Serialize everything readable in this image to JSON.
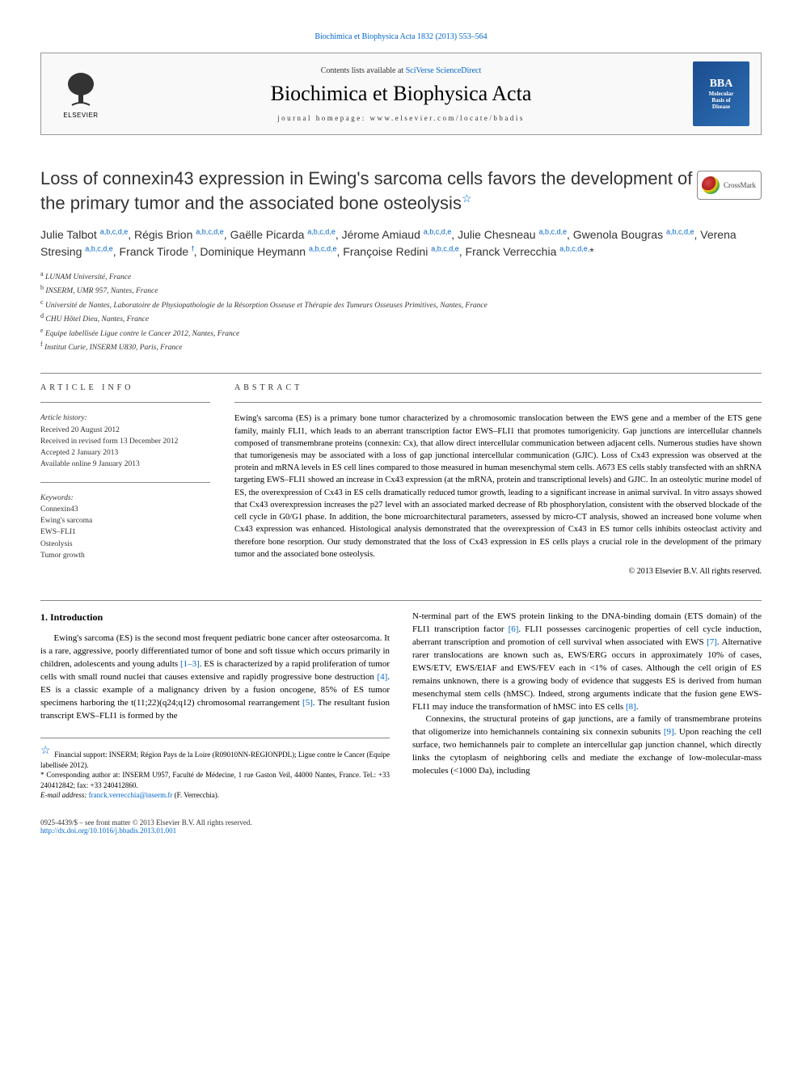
{
  "topbar": "Biochimica et Biophysica Acta 1832 (2013) 553–564",
  "header": {
    "contents_prefix": "Contents lists available at ",
    "contents_link": "SciVerse ScienceDirect",
    "journal": "Biochimica et Biophysica Acta",
    "homepage_label": "journal homepage: ",
    "homepage_url": "www.elsevier.com/locate/bbadis",
    "elsevier_label": "ELSEVIER",
    "bba_lines": [
      "BBA",
      "Molecular",
      "Basis of",
      "Disease"
    ]
  },
  "crossmark_label": "CrossMark",
  "title": "Loss of connexin43 expression in Ewing's sarcoma cells favors the development of the primary tumor and the associated bone osteolysis",
  "title_star": "☆",
  "authors_html": "Julie Talbot <sup>a,b,c,d,e</sup>, Régis Brion <sup>a,b,c,d,e</sup>, Gaëlle Picarda <sup>a,b,c,d,e</sup>, Jérome Amiaud <sup>a,b,c,d,e</sup>, Julie Chesneau <sup>a,b,c,d,e</sup>, Gwenola Bougras <sup>a,b,c,d,e</sup>, Verena Stresing <sup>a,b,c,d,e</sup>, Franck Tirode <sup>f</sup>, Dominique Heymann <sup>a,b,c,d,e</sup>, Françoise Redini <sup>a,b,c,d,e</sup>, Franck Verrecchia <sup>a,b,c,d,e,</sup>*",
  "affiliations": [
    {
      "k": "a",
      "t": "LUNAM Université, France"
    },
    {
      "k": "b",
      "t": "INSERM, UMR 957, Nantes, France"
    },
    {
      "k": "c",
      "t": "Université de Nantes, Laboratoire de Physiopathologie de la Résorption Osseuse et Thérapie des Tumeurs Osseuses Primitives, Nantes, France"
    },
    {
      "k": "d",
      "t": "CHU Hôtel Dieu, Nantes, France"
    },
    {
      "k": "e",
      "t": "Equipe labellisée Ligue contre le Cancer 2012, Nantes, France"
    },
    {
      "k": "f",
      "t": "Institut Curie, INSERM U830, Paris, France"
    }
  ],
  "article_info_label": "ARTICLE INFO",
  "abstract_label": "ABSTRACT",
  "history_label": "Article history:",
  "history": [
    "Received 20 August 2012",
    "Received in revised form 13 December 2012",
    "Accepted 2 January 2013",
    "Available online 9 January 2013"
  ],
  "keywords_label": "Keywords:",
  "keywords": [
    "Connexin43",
    "Ewing's sarcoma",
    "EWS–FLI1",
    "Osteolysis",
    "Tumor growth"
  ],
  "abstract": "Ewing's sarcoma (ES) is a primary bone tumor characterized by a chromosomic translocation between the EWS gene and a member of the ETS gene family, mainly FLI1, which leads to an aberrant transcription factor EWS–FLI1 that promotes tumorigenicity. Gap junctions are intercellular channels composed of transmembrane proteins (connexin: Cx), that allow direct intercellular communication between adjacent cells. Numerous studies have shown that tumorigenesis may be associated with a loss of gap junctional intercellular communication (GJIC). Loss of Cx43 expression was observed at the protein and mRNA levels in ES cell lines compared to those measured in human mesenchymal stem cells. A673 ES cells stably transfected with an shRNA targeting EWS–FLI1 showed an increase in Cx43 expression (at the mRNA, protein and transcriptional levels) and GJIC. In an osteolytic murine model of ES, the overexpression of Cx43 in ES cells dramatically reduced tumor growth, leading to a significant increase in animal survival. In vitro assays showed that Cx43 overexpression increases the p27 level with an associated marked decrease of Rb phosphorylation, consistent with the observed blockade of the cell cycle in G0/G1 phase. In addition, the bone microarchitectural parameters, assessed by micro-CT analysis, showed an increased bone volume when Cx43 expression was enhanced. Histological analysis demonstrated that the overexpression of Cx43 in ES tumor cells inhibits osteoclast activity and therefore bone resorption. Our study demonstrated that the loss of Cx43 expression in ES cells plays a crucial role in the development of the primary tumor and the associated bone osteolysis.",
  "copyright": "© 2013 Elsevier B.V. All rights reserved.",
  "intro_heading": "1. Introduction",
  "intro_paragraphs": [
    "Ewing's sarcoma (ES) is the second most frequent pediatric bone cancer after osteosarcoma. It is a rare, aggressive, poorly differentiated tumor of bone and soft tissue which occurs primarily in children, adolescents and young adults <a class='ref' href='#'>[1–3]</a>. ES is characterized by a rapid proliferation of tumor cells with small round nuclei that causes extensive and rapidly progressive bone destruction <a class='ref' href='#'>[4]</a>. ES is a classic example of a malignancy driven by a fusion oncogene, 85% of ES tumor specimens harboring the t(11;22)(q24;q12) chromosomal rearrangement <a class='ref' href='#'>[5]</a>. The resultant fusion transcript EWS–FLI1 is formed by the",
    "N-terminal part of the EWS protein linking to the DNA-binding domain (ETS domain) of the FLI1 transcription factor <a class='ref' href='#'>[6]</a>. FLI1 possesses carcinogenic properties of cell cycle induction, aberrant transcription and promotion of cell survival when associated with EWS <a class='ref' href='#'>[7]</a>. Alternative rarer translocations are known such as, EWS/ERG occurs in approximately 10% of cases, EWS/ETV, EWS/EIAF and EWS/FEV each in <1% of cases. Although the cell origin of ES remains unknown, there is a growing body of evidence that suggests ES is derived from human mesenchymal stem cells (hMSC). Indeed, strong arguments indicate that the fusion gene EWS-FLI1 may induce the transformation of hMSC into ES cells <a class='ref' href='#'>[8]</a>.",
    "Connexins, the structural proteins of gap junctions, are a family of transmembrane proteins that oligomerize into hemichannels containing six connexin subunits <a class='ref' href='#'>[9]</a>. Upon reaching the cell surface, two hemichannels pair to complete an intercellular gap junction channel, which directly links the cytoplasm of neighboring cells and mediate the exchange of low-molecular-mass molecules (<1000 Da), including"
  ],
  "footnotes": {
    "funding_star": "☆",
    "funding": "Financial support: INSERM; Région Pays de la Loire (R09010NN-REGIONPDL); Ligue contre le Cancer (Equipe labellisée 2012).",
    "corr_star": "*",
    "corr": "Corresponding author at: INSERM U957, Faculté de Médecine, 1 rue Gaston Veil, 44000 Nantes, France. Tel.: +33 240412842; fax: +33 240412860.",
    "email_label": "E-mail address: ",
    "email": "franck.verrecchia@inserm.fr",
    "email_tail": " (F. Verrecchia)."
  },
  "bottom": {
    "line1": "0925-4439/$ – see front matter © 2013 Elsevier B.V. All rights reserved.",
    "doi": "http://dx.doi.org/10.1016/j.bbadis.2013.01.001"
  }
}
